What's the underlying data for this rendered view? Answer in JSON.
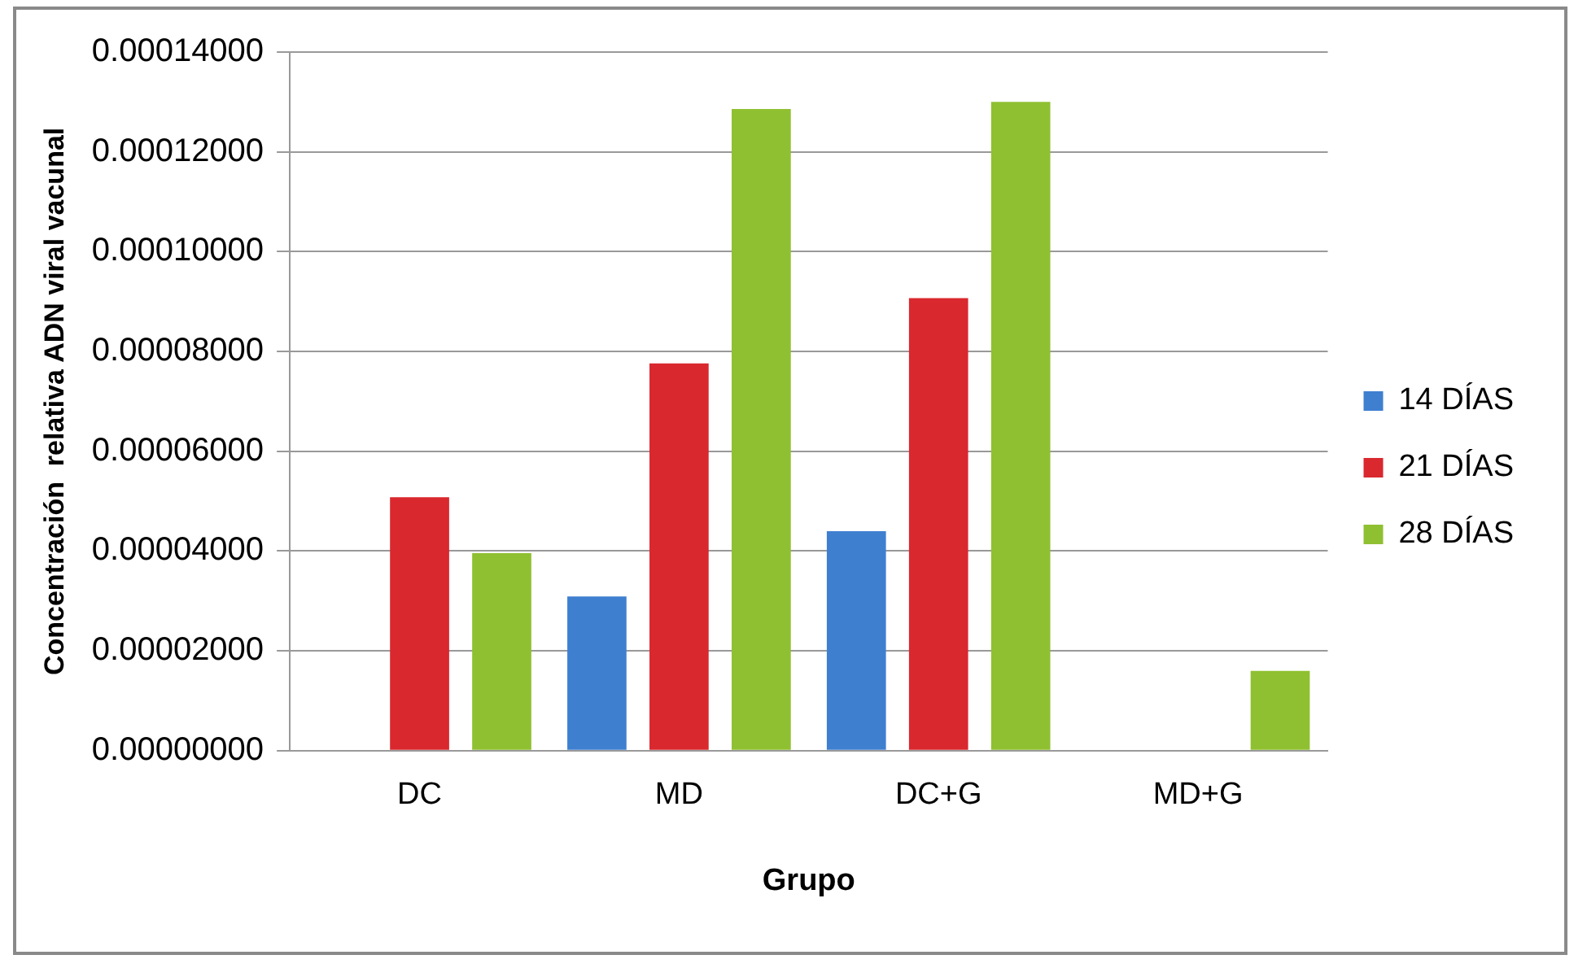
{
  "chart_data": {
    "type": "bar",
    "xlabel": "Grupo",
    "ylabel": "Concentración  relativa ADN viral vacunal",
    "categories": [
      "DC",
      "MD",
      "DC+G",
      "MD+G"
    ],
    "series": [
      {
        "name": "14 DÍAS",
        "color": "#3f7fd0",
        "values": [
          0,
          3.09e-05,
          4.4e-05,
          0
        ]
      },
      {
        "name": "21 DÍAS",
        "color": "#d9282e",
        "values": [
          5.08e-05,
          7.76e-05,
          9.07e-05,
          0
        ]
      },
      {
        "name": "28 DÍAS",
        "color": "#8fc031",
        "values": [
          3.96e-05,
          0.0001286,
          0.00013,
          1.6e-05
        ]
      }
    ],
    "ylim": [
      0,
      0.00014
    ],
    "yticks": [
      {
        "value": 0,
        "label": "0.00000000"
      },
      {
        "value": 2e-05,
        "label": "0.00002000"
      },
      {
        "value": 4e-05,
        "label": "0.00004000"
      },
      {
        "value": 6e-05,
        "label": "0.00006000"
      },
      {
        "value": 8e-05,
        "label": "0.00008000"
      },
      {
        "value": 0.0001,
        "label": "0.00010000"
      },
      {
        "value": 0.00012,
        "label": "0.00012000"
      },
      {
        "value": 0.00014,
        "label": "0.00014000"
      }
    ],
    "grid": "y",
    "legend": "right"
  }
}
